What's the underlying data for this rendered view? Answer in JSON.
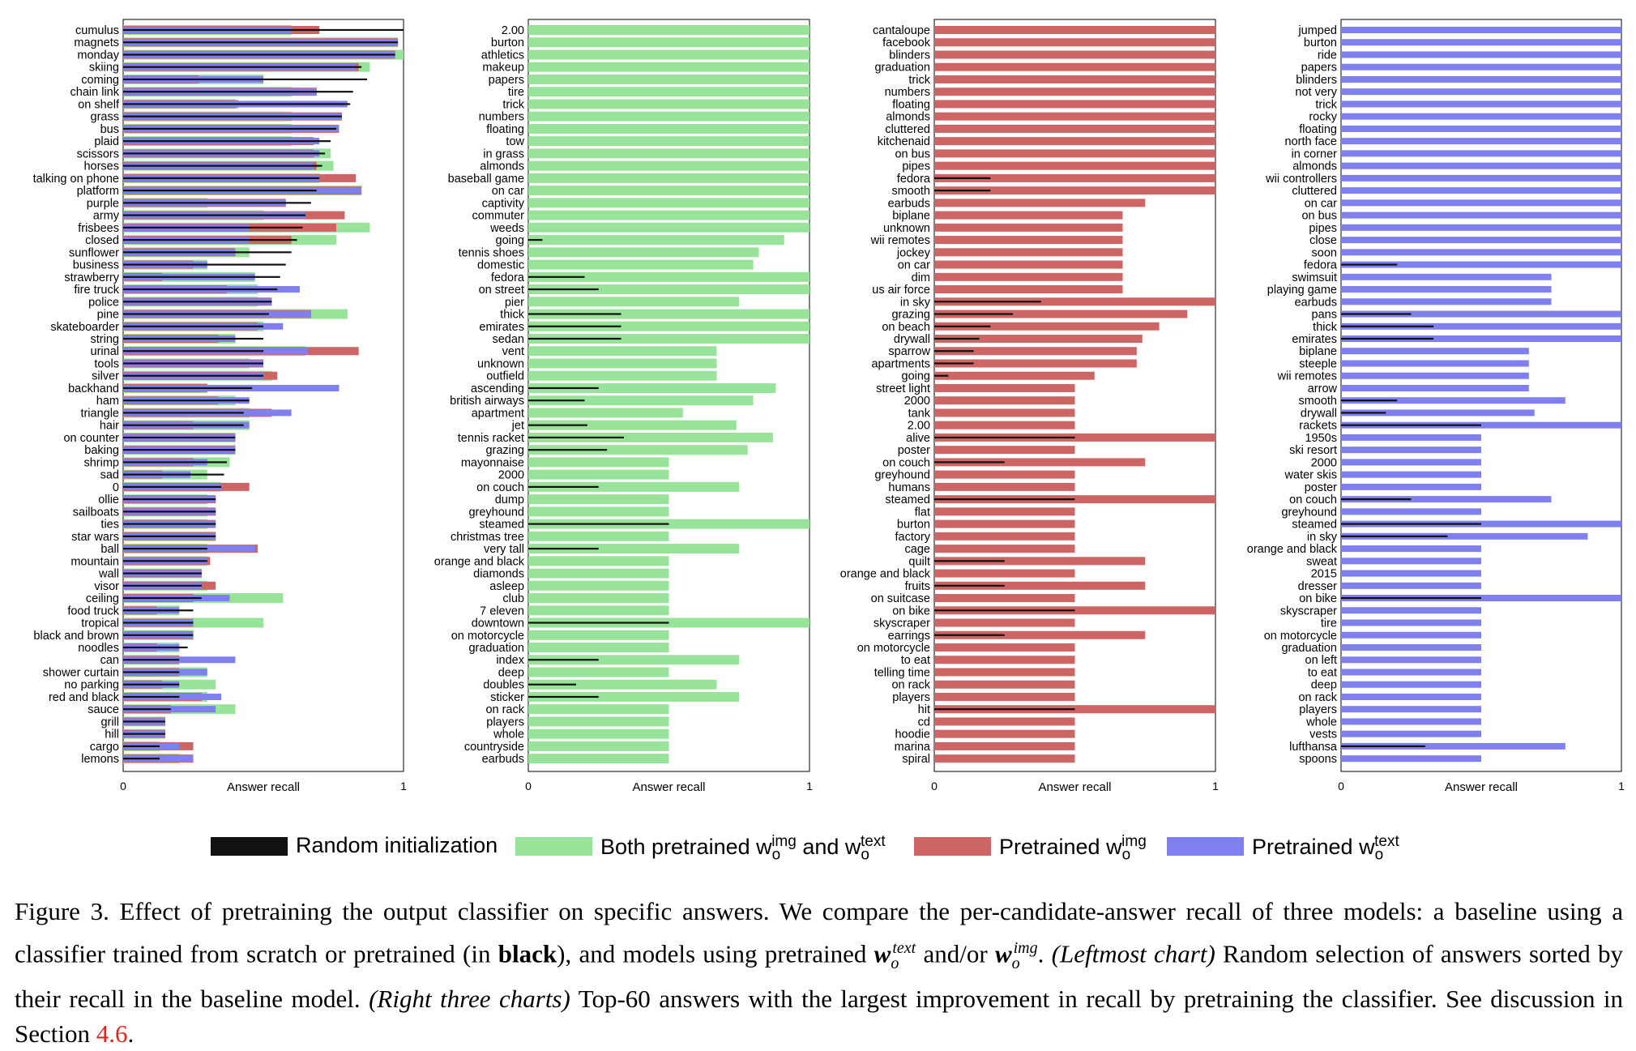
{
  "legend": [
    {
      "key": "random",
      "label": "Random initialization",
      "color": "#111111"
    },
    {
      "key": "both",
      "label_main": "Both pretrained w",
      "label_sub1": "o",
      "label_sup1": "img",
      "label_mid": " and w",
      "label_sub2": "o",
      "label_sup2": "text",
      "color": "#98e39a"
    },
    {
      "key": "img",
      "label_main": "Pretrained w",
      "label_sub": "o",
      "label_sup": "img",
      "color": "#cd6565"
    },
    {
      "key": "text",
      "label_main": "Pretrained w",
      "label_sub": "o",
      "label_sup": "text",
      "color": "#7f7ff0"
    }
  ],
  "caption": {
    "label": "Figure 3.",
    "text1": " Effect of pretraining the output classifier on specific answers. We compare the per-candidate-answer recall of three models: a baseline using a classifier trained from scratch or pretrained (in ",
    "bold": "black",
    "text2": "), and models using pretrained ",
    "var1_main": "w",
    "var1_sub": "o",
    "var1_sup": "text",
    "text3": " and/or ",
    "var2_main": "w",
    "var2_sub": "o",
    "var2_sup": "img",
    "text4": ". ",
    "italic1": "(Leftmost chart)",
    "text5": " Random selection of answers sorted by their recall in the baseline model. ",
    "italic2": "(Right three charts)",
    "text6": " Top-60 answers with the largest improvement in recall by pretraining the classifier. See discussion in Section ",
    "section_ref": "4.6",
    "text7": "."
  },
  "chart_data": [
    {
      "type": "bar",
      "orientation": "horizontal",
      "xlabel": "Answer recall",
      "xlim": [
        0,
        1
      ],
      "xticks": [
        0,
        1
      ],
      "categories": [
        "cumulus",
        "magnets",
        "monday",
        "skiing",
        "coming",
        "chain link",
        "on shelf",
        "grass",
        "bus",
        "plaid",
        "scissors",
        "horses",
        "talking on phone",
        "platform",
        "purple",
        "army",
        "frisbees",
        "closed",
        "sunflower",
        "business",
        "strawberry",
        "fire truck",
        "police",
        "pine",
        "skateboarder",
        "string",
        "urinal",
        "tools",
        "silver",
        "backhand",
        "ham",
        "triangle",
        "hair",
        "on counter",
        "baking",
        "shrimp",
        "sad",
        "0",
        "ollie",
        "sailboats",
        "ties",
        "star wars",
        "ball",
        "mountain",
        "wall",
        "visor",
        "ceiling",
        "food truck",
        "tropical",
        "black and brown",
        "noodles",
        "can",
        "shower curtain",
        "no parking",
        "red and black",
        "sauce",
        "grill",
        "hill",
        "cargo",
        "lemons"
      ],
      "series": [
        {
          "name": "Random initialization",
          "values": [
            1.0,
            0.98,
            0.97,
            0.85,
            0.87,
            0.82,
            0.81,
            0.78,
            0.76,
            0.74,
            0.72,
            0.71,
            0.7,
            0.69,
            0.67,
            0.65,
            0.64,
            0.62,
            0.6,
            0.58,
            0.56,
            0.55,
            0.53,
            0.52,
            0.5,
            0.5,
            0.5,
            0.5,
            0.5,
            0.46,
            0.45,
            0.43,
            0.43,
            0.4,
            0.4,
            0.37,
            0.36,
            0.35,
            0.33,
            0.33,
            0.33,
            0.33,
            0.3,
            0.3,
            0.28,
            0.28,
            0.28,
            0.25,
            0.25,
            0.25,
            0.23,
            0.2,
            0.2,
            0.2,
            0.2,
            0.17,
            0.15,
            0.15,
            0.13,
            0.13
          ]
        },
        {
          "name": "Both pretrained",
          "values": [
            0.6,
            0.98,
            1.0,
            0.88,
            0.5,
            0.6,
            0.4,
            0.6,
            0.6,
            0.6,
            0.74,
            0.75,
            0.7,
            0.85,
            0.3,
            0.5,
            0.88,
            0.76,
            0.45,
            0.3,
            0.47,
            0.48,
            0.48,
            0.8,
            0.5,
            0.4,
            0.65,
            0.45,
            0.53,
            0.3,
            0.4,
            0.45,
            0.45,
            0.4,
            0.4,
            0.38,
            0.3,
            0.35,
            0.3,
            0.3,
            0.3,
            0.33,
            0.3,
            0.3,
            0.28,
            0.3,
            0.57,
            0.2,
            0.5,
            0.25,
            0.2,
            0.2,
            0.3,
            0.33,
            0.3,
            0.4,
            0.15,
            0.15,
            0.13,
            0.2
          ]
        },
        {
          "name": "Pretrained img",
          "values": [
            0.7,
            0.98,
            0.97,
            0.84,
            0.27,
            0.69,
            0.41,
            0.78,
            0.77,
            0.68,
            0.68,
            0.69,
            0.83,
            0.85,
            0.58,
            0.79,
            0.76,
            0.6,
            0.4,
            0.25,
            0.14,
            0.37,
            0.53,
            0.67,
            0.48,
            0.34,
            0.84,
            0.5,
            0.55,
            0.3,
            0.34,
            0.53,
            0.25,
            0.4,
            0.4,
            0.25,
            0.14,
            0.45,
            0.33,
            0.33,
            0.33,
            0.33,
            0.48,
            0.31,
            0.28,
            0.33,
            0.25,
            0.12,
            0.25,
            0.25,
            0.12,
            0.2,
            0.2,
            0.14,
            0.28,
            0.17,
            0.15,
            0.15,
            0.25,
            0.25
          ]
        },
        {
          "name": "Pretrained text",
          "values": [
            0.6,
            0.98,
            0.97,
            0.83,
            0.5,
            0.69,
            0.8,
            0.78,
            0.77,
            0.7,
            0.7,
            0.68,
            0.7,
            0.85,
            0.58,
            0.65,
            0.45,
            0.45,
            0.4,
            0.3,
            0.47,
            0.63,
            0.53,
            0.67,
            0.57,
            0.4,
            0.66,
            0.5,
            0.5,
            0.77,
            0.45,
            0.6,
            0.45,
            0.4,
            0.4,
            0.3,
            0.24,
            0.35,
            0.33,
            0.33,
            0.33,
            0.33,
            0.47,
            0.3,
            0.28,
            0.28,
            0.38,
            0.2,
            0.25,
            0.25,
            0.2,
            0.4,
            0.3,
            0.2,
            0.35,
            0.33,
            0.15,
            0.15,
            0.2,
            0.25
          ]
        }
      ]
    },
    {
      "type": "bar",
      "orientation": "horizontal",
      "xlabel": "Answer recall",
      "xlim": [
        0,
        1
      ],
      "xticks": [
        0,
        1
      ],
      "categories": [
        "2.00",
        "burton",
        "athletics",
        "makeup",
        "papers",
        "tire",
        "trick",
        "numbers",
        "floating",
        "tow",
        "in grass",
        "almonds",
        "baseball game",
        "on car",
        "captivity",
        "commuter",
        "weeds",
        "going",
        "tennis shoes",
        "domestic",
        "fedora",
        "on street",
        "pier",
        "thick",
        "emirates",
        "sedan",
        "vent",
        "unknown",
        "outfield",
        "ascending",
        "british airways",
        "apartment",
        "jet",
        "tennis racket",
        "grazing",
        "mayonnaise",
        "2000",
        "on couch",
        "dump",
        "greyhound",
        "steamed",
        "christmas tree",
        "very tall",
        "orange and black",
        "diamonds",
        "asleep",
        "club",
        "7 eleven",
        "downtown",
        "on motorcycle",
        "graduation",
        "index",
        "deep",
        "doubles",
        "sticker",
        "on rack",
        "players",
        "whole",
        "countryside",
        "earbuds"
      ],
      "series": [
        {
          "name": "Random initialization",
          "values": [
            0,
            0,
            0,
            0,
            0,
            0,
            0,
            0,
            0,
            0,
            0,
            0,
            0,
            0,
            0,
            0,
            0,
            0.05,
            0,
            0,
            0.2,
            0.25,
            0,
            0.33,
            0.33,
            0.33,
            0,
            0,
            0,
            0.25,
            0.2,
            0,
            0.21,
            0.34,
            0.28,
            0,
            0,
            0.25,
            0,
            0,
            0.5,
            0,
            0.25,
            0,
            0,
            0,
            0,
            0,
            0.5,
            0,
            0,
            0.25,
            0,
            0.17,
            0.25,
            0,
            0,
            0,
            0,
            0
          ]
        },
        {
          "name": "Both pretrained",
          "values": [
            1,
            1,
            1,
            1,
            1,
            1,
            1,
            1,
            1,
            1,
            1,
            1,
            1,
            1,
            1,
            1,
            1,
            0.91,
            0.82,
            0.8,
            1,
            1,
            0.75,
            1,
            1,
            1,
            0.67,
            0.67,
            0.67,
            0.88,
            0.8,
            0.55,
            0.74,
            0.87,
            0.78,
            0.5,
            0.5,
            0.75,
            0.5,
            0.5,
            1,
            0.5,
            0.75,
            0.5,
            0.5,
            0.5,
            0.5,
            0.5,
            1,
            0.5,
            0.5,
            0.75,
            0.5,
            0.67,
            0.75,
            0.5,
            0.5,
            0.5,
            0.5,
            0.5
          ]
        }
      ]
    },
    {
      "type": "bar",
      "orientation": "horizontal",
      "xlabel": "Answer recall",
      "xlim": [
        0,
        1
      ],
      "xticks": [
        0,
        1
      ],
      "categories": [
        "cantaloupe",
        "facebook",
        "blinders",
        "graduation",
        "trick",
        "numbers",
        "floating",
        "almonds",
        "cluttered",
        "kitchenaid",
        "on bus",
        "pipes",
        "fedora",
        "smooth",
        "earbuds",
        "biplane",
        "unknown",
        "wii remotes",
        "jockey",
        "on car",
        "dim",
        "us air force",
        "in sky",
        "grazing",
        "on beach",
        "drywall",
        "sparrow",
        "apartments",
        "going",
        "street light",
        "2000",
        "tank",
        "2.00",
        "alive",
        "poster",
        "on couch",
        "greyhound",
        "humans",
        "steamed",
        "flat",
        "burton",
        "factory",
        "cage",
        "quilt",
        "orange and black",
        "fruits",
        "on suitcase",
        "on bike",
        "skyscraper",
        "earrings",
        "on motorcycle",
        "to eat",
        "telling time",
        "on rack",
        "players",
        "hit",
        "cd",
        "hoodie",
        "marina",
        "spiral"
      ],
      "series": [
        {
          "name": "Random initialization",
          "values": [
            0,
            0,
            0,
            0,
            0,
            0,
            0,
            0,
            0,
            0,
            0,
            0,
            0.2,
            0.2,
            0,
            0,
            0,
            0,
            0,
            0,
            0,
            0,
            0.38,
            0.28,
            0.2,
            0.16,
            0.14,
            0.14,
            0.05,
            0,
            0,
            0,
            0,
            0.5,
            0,
            0.25,
            0,
            0,
            0.5,
            0,
            0,
            0,
            0,
            0.25,
            0,
            0.25,
            0,
            0.5,
            0,
            0.25,
            0,
            0,
            0,
            0,
            0,
            0.5,
            0,
            0,
            0,
            0
          ]
        },
        {
          "name": "Pretrained img",
          "values": [
            1,
            1,
            1,
            1,
            1,
            1,
            1,
            1,
            1,
            1,
            1,
            1,
            1,
            1,
            0.75,
            0.67,
            0.67,
            0.67,
            0.67,
            0.67,
            0.67,
            0.67,
            1,
            0.9,
            0.8,
            0.74,
            0.72,
            0.72,
            0.57,
            0.5,
            0.5,
            0.5,
            0.5,
            1,
            0.5,
            0.75,
            0.5,
            0.5,
            1,
            0.5,
            0.5,
            0.5,
            0.5,
            0.75,
            0.5,
            0.75,
            0.5,
            1,
            0.5,
            0.75,
            0.5,
            0.5,
            0.5,
            0.5,
            0.5,
            1,
            0.5,
            0.5,
            0.5,
            0.5
          ]
        }
      ]
    },
    {
      "type": "bar",
      "orientation": "horizontal",
      "xlabel": "Answer recall",
      "xlim": [
        0,
        1
      ],
      "xticks": [
        0,
        1
      ],
      "categories": [
        "jumped",
        "burton",
        "ride",
        "papers",
        "blinders",
        "not very",
        "trick",
        "rocky",
        "floating",
        "north face",
        "in corner",
        "almonds",
        "wii controllers",
        "cluttered",
        "on car",
        "on bus",
        "pipes",
        "close",
        "soon",
        "fedora",
        "swimsuit",
        "playing game",
        "earbuds",
        "pans",
        "thick",
        "emirates",
        "biplane",
        "steeple",
        "wii remotes",
        "arrow",
        "smooth",
        "drywall",
        "rackets",
        "1950s",
        "ski resort",
        "2000",
        "water skis",
        "poster",
        "on couch",
        "greyhound",
        "steamed",
        "in sky",
        "orange and black",
        "sweat",
        "2015",
        "dresser",
        "on bike",
        "skyscraper",
        "tire",
        "on motorcycle",
        "graduation",
        "on left",
        "to eat",
        "deep",
        "on rack",
        "players",
        "whole",
        "vests",
        "lufthansa",
        "spoons"
      ],
      "series": [
        {
          "name": "Random initialization",
          "values": [
            0,
            0,
            0,
            0,
            0,
            0,
            0,
            0,
            0,
            0,
            0,
            0,
            0,
            0,
            0,
            0,
            0,
            0,
            0,
            0.2,
            0,
            0,
            0,
            0.25,
            0.33,
            0.33,
            0,
            0,
            0,
            0,
            0.2,
            0.16,
            0.5,
            0,
            0,
            0,
            0,
            0,
            0.25,
            0,
            0.5,
            0.38,
            0,
            0,
            0,
            0,
            0.5,
            0,
            0,
            0,
            0,
            0,
            0,
            0,
            0,
            0,
            0,
            0,
            0.3,
            0
          ]
        },
        {
          "name": "Pretrained text",
          "values": [
            1,
            1,
            1,
            1,
            1,
            1,
            1,
            1,
            1,
            1,
            1,
            1,
            1,
            1,
            1,
            1,
            1,
            1,
            1,
            1,
            0.75,
            0.75,
            0.75,
            1,
            1,
            1,
            0.67,
            0.67,
            0.67,
            0.67,
            0.8,
            0.69,
            1,
            0.5,
            0.5,
            0.5,
            0.5,
            0.5,
            0.75,
            0.5,
            1,
            0.88,
            0.5,
            0.5,
            0.5,
            0.5,
            1,
            0.5,
            0.5,
            0.5,
            0.5,
            0.5,
            0.5,
            0.5,
            0.5,
            0.5,
            0.5,
            0.5,
            0.8,
            0.5
          ]
        }
      ]
    }
  ]
}
